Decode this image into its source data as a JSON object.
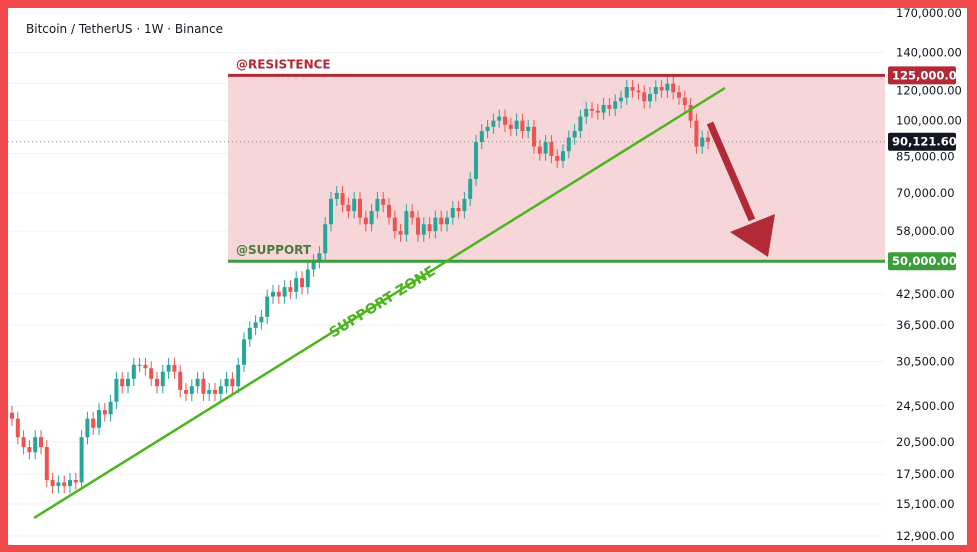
{
  "header": {
    "title": "Bitcoin / TetherUS · 1W · Binance"
  },
  "colors": {
    "up": "#26a69a",
    "down": "#ef5350",
    "resistance": "#b22a35",
    "support": "#3a9e3a",
    "zone_fill": "#f7d6d9",
    "trendline": "#4cb51e",
    "arrow": "#b22a35",
    "border": "#f0474a"
  },
  "chart_data": {
    "type": "candlestick",
    "scale": "log",
    "ylim": [
      12900,
      170000
    ],
    "y_ticks": [
      "170,000.00",
      "140,000.00",
      "120,000.00",
      "100,000.00",
      "85,000.00",
      "70,000.00",
      "58,000.00",
      "42,500.00",
      "36,500.00",
      "30,500.00",
      "24,500.00",
      "20,500.00",
      "17,500.00",
      "15,100.00",
      "12,900.00"
    ],
    "y_tick_values": [
      170000,
      140000,
      120000,
      100000,
      85000,
      70000,
      58000,
      42500,
      36500,
      30500,
      24500,
      20500,
      17500,
      15100,
      12900
    ],
    "weekly_closes_k": [
      23,
      21,
      20,
      19.5,
      21,
      20,
      17,
      16.5,
      16.8,
      16.5,
      17,
      16.8,
      21,
      23,
      22,
      24,
      23.5,
      25,
      28,
      27,
      28,
      30,
      30,
      29.5,
      28,
      27,
      29,
      30,
      29,
      26.5,
      26,
      27,
      28,
      26,
      26.5,
      26,
      27,
      28,
      27,
      30,
      34,
      36,
      37,
      38,
      42,
      43,
      42,
      44,
      43,
      46,
      44,
      48,
      50,
      52,
      60,
      68,
      70,
      66,
      64,
      68,
      62,
      60,
      64,
      68,
      66,
      62,
      58,
      57,
      64,
      62,
      57,
      60,
      58,
      62,
      60,
      62,
      65,
      64,
      68,
      75,
      90,
      95,
      97,
      100,
      102,
      98,
      96,
      100,
      95,
      97,
      88,
      85,
      90,
      84,
      82,
      86,
      92,
      95,
      102,
      106,
      105,
      104,
      108,
      106,
      110,
      112,
      118,
      116,
      115,
      110,
      114,
      118,
      116,
      120,
      115,
      112,
      108,
      100,
      88,
      92,
      90.12
    ],
    "current_price": {
      "value": 90121.6,
      "label": "90,121.60"
    },
    "resistance": {
      "value": 125000,
      "label": "125,000.00",
      "annotation": "@RESISTENCE"
    },
    "support": {
      "value": 50000,
      "label": "50,000.00",
      "annotation": "@SUPPORT"
    },
    "trendline_annotation": "SUPPORT ZONE"
  }
}
